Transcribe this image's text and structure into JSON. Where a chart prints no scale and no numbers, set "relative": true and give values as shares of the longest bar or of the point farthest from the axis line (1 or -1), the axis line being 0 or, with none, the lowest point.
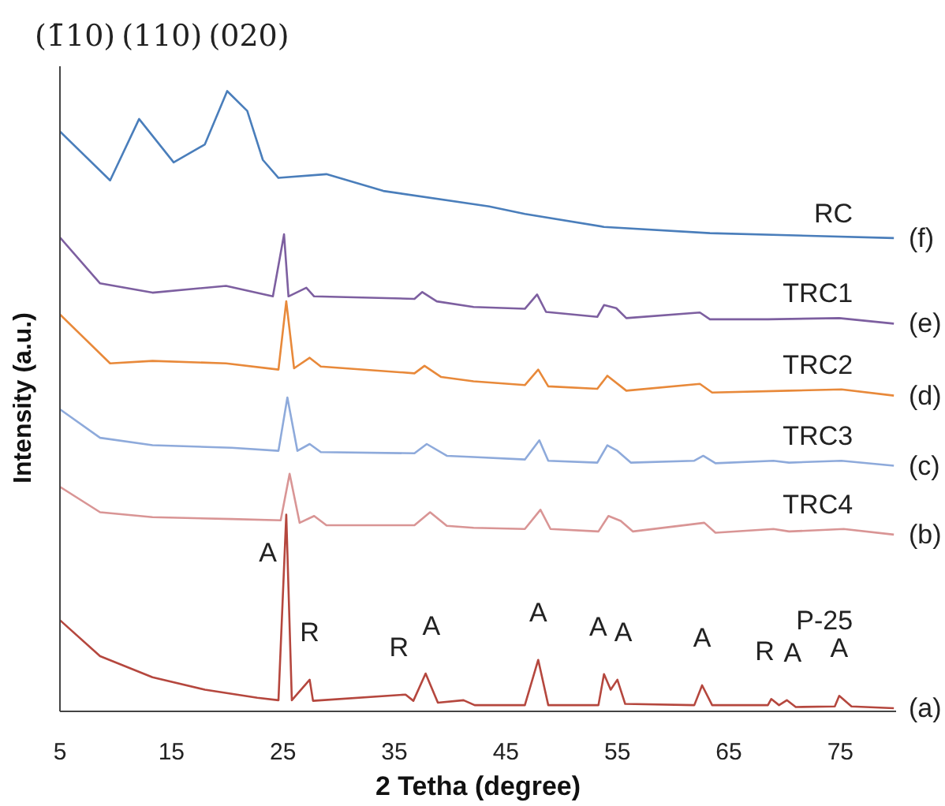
{
  "chart_data": {
    "type": "line",
    "relative": true,
    "xlabel": "2 Tetha (degree)",
    "ylabel": "Intensity (a.u.)",
    "xlim": [
      5,
      80
    ],
    "xticks": [
      5,
      15,
      25,
      35,
      45,
      55,
      65,
      75
    ],
    "series": [
      {
        "name": "RC",
        "color": "#4a7ebb",
        "x": [
          5,
          9.5,
          12.1,
          15.2,
          18,
          20,
          21.8,
          23.2,
          24.6,
          28.9,
          34,
          43.5,
          46.7,
          53.8,
          63.3,
          79.8
        ],
        "values": [
          0.935,
          0.856,
          0.955,
          0.885,
          0.914,
          1.0,
          0.968,
          0.889,
          0.86,
          0.866,
          0.839,
          0.814,
          0.802,
          0.781,
          0.771,
          0.763
        ]
      },
      {
        "name": "TRC1",
        "color": "#7d5fa0",
        "x": [
          5,
          8.6,
          13.3,
          19.9,
          24.1,
          25.1,
          25.5,
          27.1,
          27.8,
          36.8,
          37.5,
          38.8,
          42.1,
          46.7,
          47.8,
          48.6,
          53.2,
          53.8,
          54.9,
          55.8,
          62.4,
          63.3,
          68.5,
          74.9,
          79.8
        ],
        "values": [
          0.764,
          0.69,
          0.675,
          0.686,
          0.669,
          0.769,
          0.669,
          0.683,
          0.669,
          0.665,
          0.676,
          0.661,
          0.652,
          0.649,
          0.672,
          0.644,
          0.636,
          0.655,
          0.65,
          0.634,
          0.643,
          0.632,
          0.632,
          0.634,
          0.625
        ]
      },
      {
        "name": "TRC2",
        "color": "#e8893a",
        "x": [
          5,
          9.5,
          13.3,
          19.9,
          24.6,
          25.3,
          26,
          27.4,
          28.4,
          36.8,
          37.7,
          39.2,
          42.1,
          46.7,
          47.9,
          48.8,
          53.2,
          54.1,
          55.8,
          62.4,
          63.5,
          70.4,
          75.1,
          79.8
        ],
        "values": [
          0.64,
          0.561,
          0.565,
          0.561,
          0.551,
          0.661,
          0.553,
          0.57,
          0.556,
          0.545,
          0.557,
          0.539,
          0.532,
          0.526,
          0.551,
          0.524,
          0.52,
          0.541,
          0.517,
          0.528,
          0.514,
          0.517,
          0.519,
          0.509
        ]
      },
      {
        "name": "TRC3",
        "color": "#8eaadb",
        "x": [
          5,
          8.6,
          13.3,
          20.4,
          24.6,
          25.4,
          26.3,
          27.4,
          28.4,
          36.8,
          37.9,
          39.7,
          42.1,
          46.7,
          48,
          48.8,
          53.2,
          54.1,
          55,
          56.2,
          61.9,
          62.7,
          63.8,
          69,
          70.4,
          75.1,
          79.8
        ],
        "values": [
          0.487,
          0.441,
          0.429,
          0.425,
          0.42,
          0.506,
          0.42,
          0.431,
          0.418,
          0.416,
          0.431,
          0.412,
          0.41,
          0.406,
          0.437,
          0.404,
          0.401,
          0.429,
          0.42,
          0.401,
          0.404,
          0.412,
          0.4,
          0.404,
          0.401,
          0.404,
          0.396
        ]
      },
      {
        "name": "TRC4",
        "color": "#d99595",
        "x": [
          5,
          8.6,
          13.3,
          20.4,
          24.8,
          25.6,
          26.5,
          27.8,
          28.9,
          36.8,
          38.2,
          39.7,
          42.1,
          46.7,
          48.1,
          49,
          53.3,
          54.2,
          55.3,
          56.4,
          62.8,
          63.8,
          69,
          70.4,
          75.3,
          79.8
        ],
        "values": [
          0.362,
          0.321,
          0.313,
          0.31,
          0.308,
          0.383,
          0.304,
          0.315,
          0.3,
          0.3,
          0.321,
          0.299,
          0.296,
          0.294,
          0.325,
          0.294,
          0.29,
          0.315,
          0.307,
          0.29,
          0.304,
          0.288,
          0.294,
          0.29,
          0.294,
          0.285
        ]
      },
      {
        "name": "P-25",
        "color": "#b5473e",
        "x": [
          5,
          8.6,
          13.3,
          18,
          22.7,
          24.6,
          25.3,
          25.8,
          27.4,
          27.7,
          36,
          36.7,
          37.8,
          38.9,
          41.2,
          42.2,
          46.7,
          47.9,
          48.8,
          53.3,
          53.8,
          54.4,
          55,
          55.7,
          61.9,
          62.6,
          63.5,
          68.5,
          68.8,
          69.5,
          70.2,
          71,
          74.5,
          74.9,
          76,
          79.8
        ],
        "values": [
          0.147,
          0.089,
          0.055,
          0.035,
          0.022,
          0.018,
          0.317,
          0.018,
          0.051,
          0.017,
          0.027,
          0.017,
          0.061,
          0.014,
          0.018,
          0.01,
          0.01,
          0.083,
          0.01,
          0.01,
          0.06,
          0.035,
          0.051,
          0.012,
          0.01,
          0.042,
          0.01,
          0.01,
          0.02,
          0.01,
          0.018,
          0.007,
          0.008,
          0.025,
          0.008,
          0.005
        ]
      }
    ],
    "annotations": [
      "(1̄10)",
      "(110)",
      "(020)",
      {
        "text": "(f)",
        "x": 80,
        "y": 0.763
      },
      {
        "text": "(e)",
        "x": 80,
        "y": 0.625
      },
      {
        "text": "(d)",
        "x": 80,
        "y": 0.509
      },
      {
        "text": "(c)",
        "x": 80,
        "y": 0.396
      },
      {
        "text": "(b)",
        "x": 80,
        "y": 0.285
      },
      {
        "text": "(a)",
        "x": 80,
        "y": 0.005
      },
      {
        "text": "A",
        "x": 25.3,
        "y": 0.317
      },
      {
        "text": "R",
        "x": 27.4,
        "y": 0.051
      },
      {
        "text": "R",
        "x": 36,
        "y": 0.027
      },
      {
        "text": "A",
        "x": 37.8,
        "y": 0.061
      },
      {
        "text": "A",
        "x": 47.9,
        "y": 0.083
      },
      {
        "text": "A",
        "x": 53.8,
        "y": 0.06
      },
      {
        "text": "A",
        "x": 55,
        "y": 0.051
      },
      {
        "text": "A",
        "x": 62.6,
        "y": 0.042
      },
      {
        "text": "R",
        "x": 68.8,
        "y": 0.02
      },
      {
        "text": "A",
        "x": 70.2,
        "y": 0.018
      },
      {
        "text": "A",
        "x": 74.9,
        "y": 0.025
      }
    ]
  }
}
